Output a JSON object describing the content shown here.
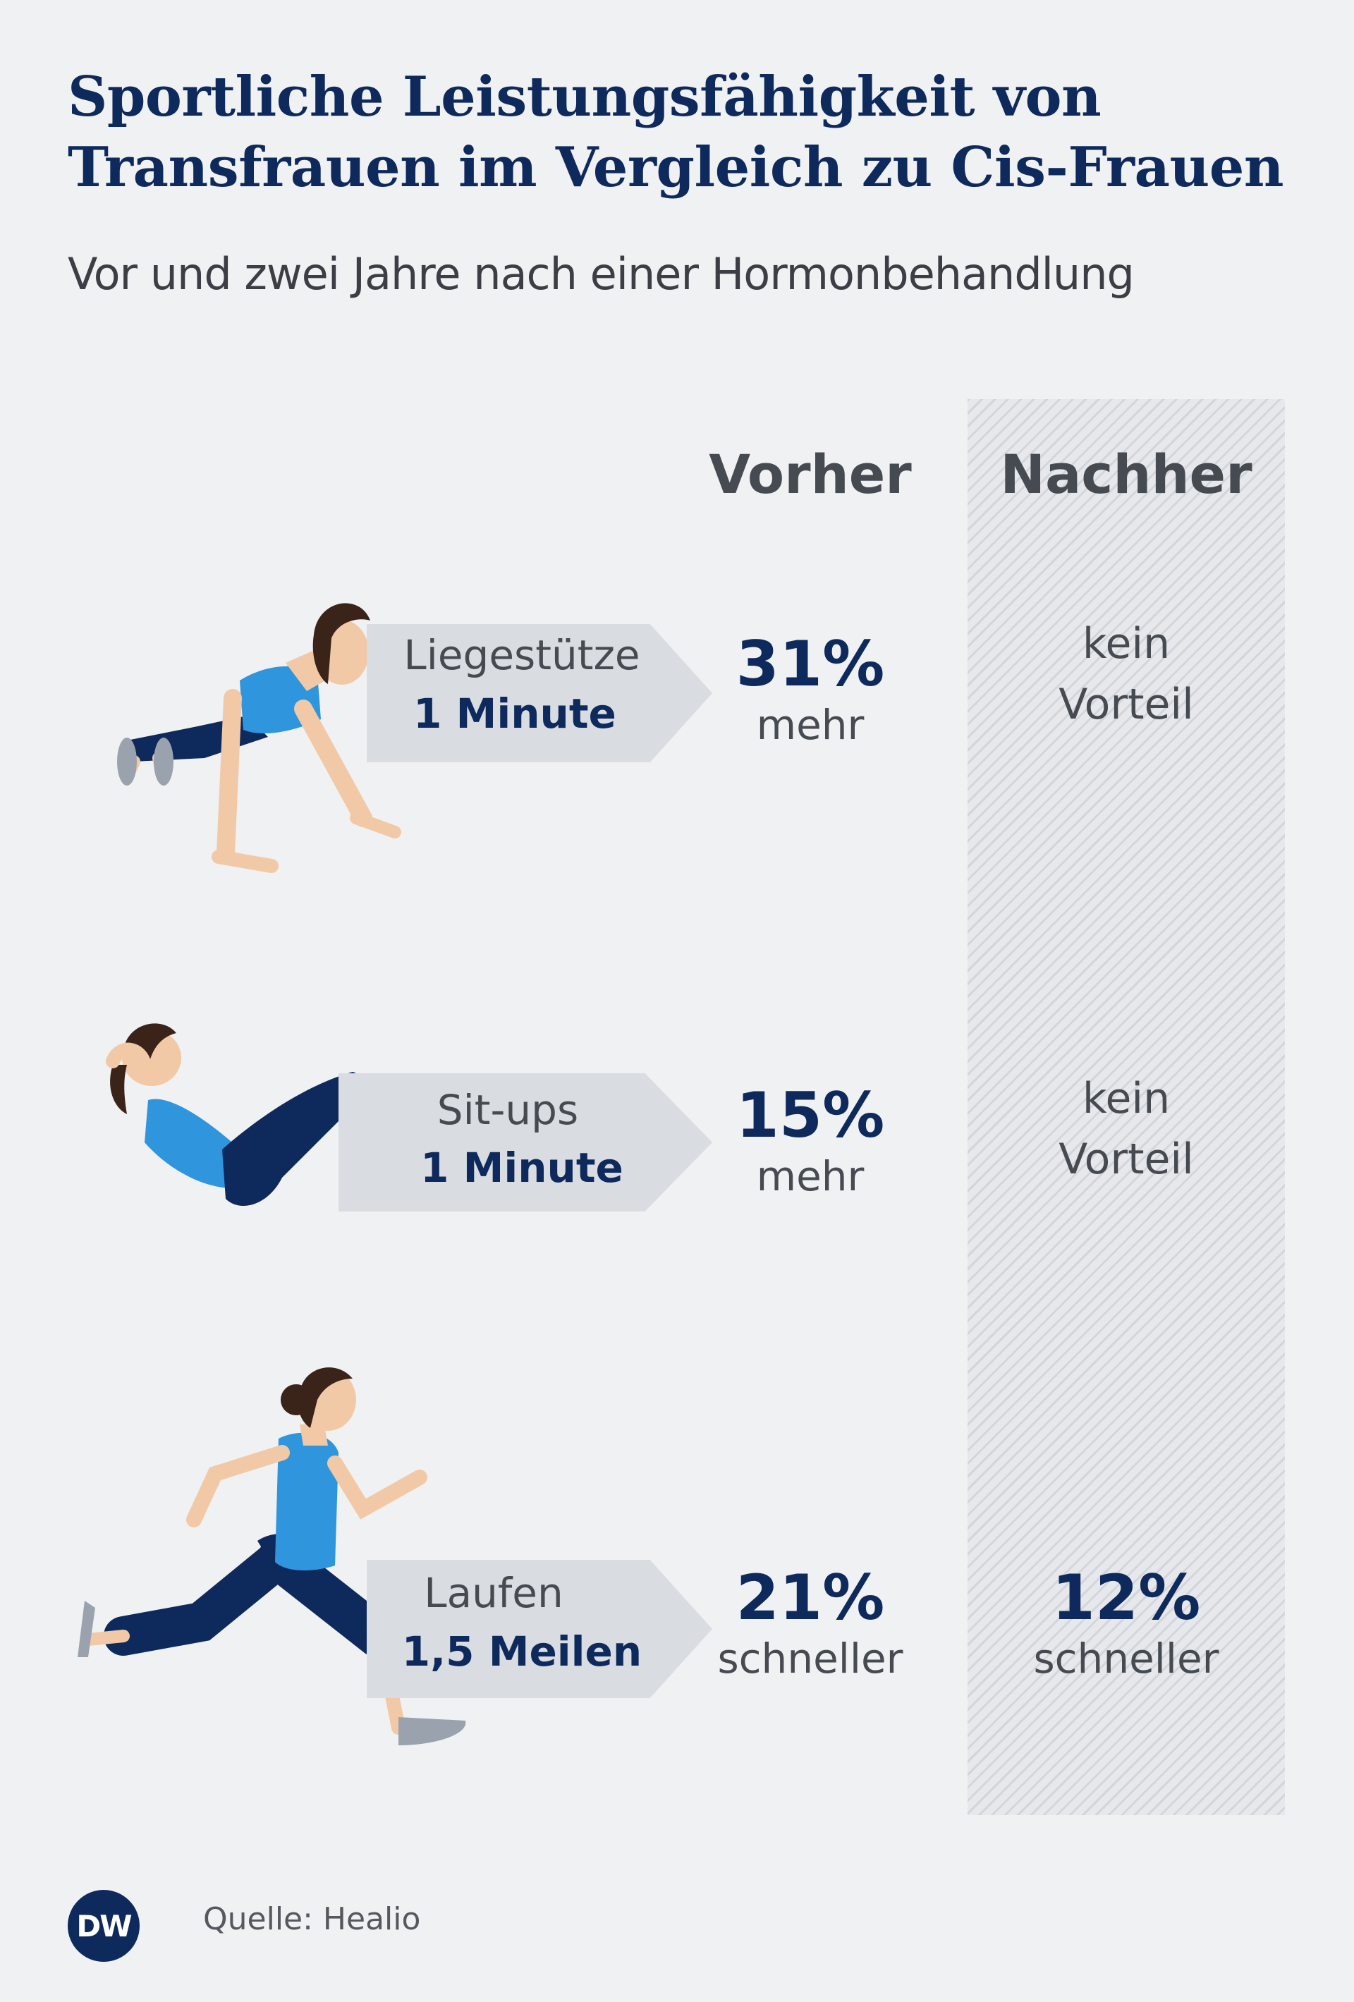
{
  "header": {
    "title_line1": "Sportliche Leistungsfähigkeit von",
    "title_line2": "Transfrauen im Vergleich zu Cis-Frauen",
    "subtitle": "Vor und zwei Jahre nach einer Hormonbehandlung"
  },
  "columns": {
    "before": "Vorher",
    "after": "Nachher"
  },
  "rows": [
    {
      "exercise": "Liegestütze",
      "duration": "1 Minute",
      "before_value": "31%",
      "before_unit": "mehr",
      "after_line1": "kein",
      "after_line2": "Vorteil",
      "figure": "pushup-woman-illustration"
    },
    {
      "exercise": "Sit-ups",
      "duration": "1 Minute",
      "before_value": "15%",
      "before_unit": "mehr",
      "after_line1": "kein",
      "after_line2": "Vorteil",
      "figure": "situp-woman-illustration"
    },
    {
      "exercise": "Laufen",
      "duration": "1,5 Meilen",
      "before_value": "21%",
      "before_unit": "schneller",
      "after_value": "12%",
      "after_unit": "schneller",
      "figure": "running-woman-illustration"
    }
  ],
  "footer": {
    "logo_text": "DW",
    "source": "Quelle: Healio"
  },
  "colors": {
    "navy": "#0e2a5c",
    "shirt_blue": "#2f95dd",
    "background": "#f0f1f3",
    "arrow_gray": "#d9dde2"
  }
}
